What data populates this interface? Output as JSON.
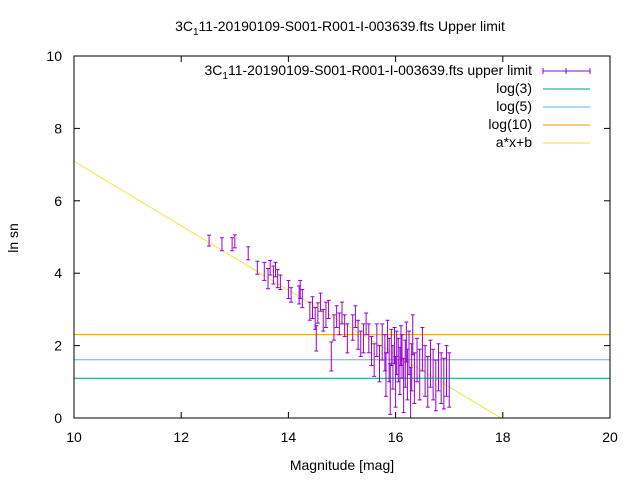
{
  "chart_data": {
    "type": "scatter",
    "title": {
      "prefix": "3C",
      "subscript": "1",
      "suffix": "11-20190109-S001-R001-I-003639.fts Upper limit"
    },
    "xlabel": "Magnitude [mag]",
    "ylabel": "ln sn",
    "xlim": [
      10,
      20
    ],
    "ylim": [
      0,
      10
    ],
    "xticks": [
      "10",
      "12",
      "14",
      "16",
      "18",
      "20"
    ],
    "yticks": [
      "0",
      "2",
      "4",
      "6",
      "8",
      "10"
    ],
    "grid": false,
    "legend_position": "top-right",
    "series": [
      {
        "name": {
          "prefix": "3C",
          "subscript": "1",
          "suffix": "11-20190109-S001-R001-I-003639.fts upper limit"
        },
        "kind": "errorbars",
        "color": "#9400d3",
        "points": [
          [
            12.52,
            4.9,
            0.15
          ],
          [
            12.76,
            4.8,
            0.18
          ],
          [
            12.95,
            4.8,
            0.18
          ],
          [
            13.0,
            4.88,
            0.18
          ],
          [
            13.25,
            4.55,
            0.18
          ],
          [
            13.42,
            4.15,
            0.18
          ],
          [
            13.55,
            4.05,
            0.25
          ],
          [
            13.62,
            3.85,
            0.28
          ],
          [
            13.66,
            4.15,
            0.2
          ],
          [
            13.72,
            3.95,
            0.25
          ],
          [
            13.76,
            4.1,
            0.2
          ],
          [
            13.8,
            3.85,
            0.25
          ],
          [
            13.85,
            3.75,
            0.2
          ],
          [
            14.0,
            3.55,
            0.25
          ],
          [
            14.05,
            3.4,
            0.2
          ],
          [
            14.2,
            3.4,
            0.25
          ],
          [
            14.22,
            3.55,
            0.25
          ],
          [
            14.26,
            3.3,
            0.25
          ],
          [
            14.4,
            2.95,
            0.25
          ],
          [
            14.45,
            3.05,
            0.3
          ],
          [
            14.5,
            2.75,
            0.3
          ],
          [
            14.52,
            2.2,
            0.35
          ],
          [
            14.55,
            2.9,
            0.28
          ],
          [
            14.6,
            3.2,
            0.25
          ],
          [
            14.65,
            2.7,
            0.3
          ],
          [
            14.7,
            2.85,
            0.35
          ],
          [
            14.75,
            3.0,
            0.25
          ],
          [
            14.8,
            1.7,
            0.4
          ],
          [
            14.85,
            2.5,
            0.35
          ],
          [
            14.9,
            2.8,
            0.3
          ],
          [
            14.95,
            2.6,
            0.3
          ],
          [
            15.0,
            2.9,
            0.3
          ],
          [
            15.05,
            2.55,
            0.3
          ],
          [
            15.1,
            2.2,
            0.4
          ],
          [
            15.2,
            2.5,
            0.35
          ],
          [
            15.25,
            2.8,
            0.3
          ],
          [
            15.3,
            2.3,
            0.4
          ],
          [
            15.35,
            2.05,
            0.35
          ],
          [
            15.4,
            2.2,
            0.4
          ],
          [
            15.45,
            2.6,
            0.3
          ],
          [
            15.5,
            2.2,
            0.4
          ],
          [
            15.55,
            1.85,
            0.4
          ],
          [
            15.6,
            1.6,
            0.45
          ],
          [
            15.65,
            2.15,
            0.45
          ],
          [
            15.7,
            1.5,
            0.5
          ],
          [
            15.75,
            2.1,
            0.5
          ],
          [
            15.8,
            1.8,
            0.5
          ],
          [
            15.82,
            1.2,
            0.6
          ],
          [
            15.85,
            2.25,
            0.45
          ],
          [
            15.88,
            1.6,
            0.6
          ],
          [
            15.9,
            0.8,
            0.7
          ],
          [
            15.92,
            1.95,
            0.5
          ],
          [
            15.95,
            1.4,
            0.6
          ],
          [
            15.98,
            2.0,
            0.5
          ],
          [
            16.0,
            1.0,
            0.7
          ],
          [
            16.02,
            1.8,
            0.6
          ],
          [
            16.05,
            1.6,
            0.6
          ],
          [
            16.08,
            1.3,
            0.65
          ],
          [
            16.1,
            2.0,
            0.55
          ],
          [
            16.12,
            1.7,
            0.6
          ],
          [
            16.15,
            0.9,
            0.75
          ],
          [
            16.18,
            1.5,
            0.65
          ],
          [
            16.2,
            2.1,
            0.55
          ],
          [
            16.22,
            1.2,
            0.7
          ],
          [
            16.25,
            1.8,
            0.6
          ],
          [
            16.28,
            0.7,
            0.7
          ],
          [
            16.3,
            1.4,
            0.65
          ],
          [
            16.32,
            2.3,
            0.55
          ],
          [
            16.35,
            1.1,
            0.7
          ],
          [
            16.4,
            1.6,
            0.6
          ],
          [
            16.45,
            1.2,
            0.7
          ],
          [
            16.5,
            1.9,
            0.6
          ],
          [
            16.55,
            1.3,
            0.7
          ],
          [
            16.6,
            1.0,
            0.7
          ],
          [
            16.65,
            1.5,
            0.65
          ],
          [
            16.7,
            1.2,
            0.7
          ],
          [
            16.75,
            0.9,
            0.7
          ],
          [
            16.8,
            1.4,
            0.65
          ],
          [
            16.85,
            1.1,
            0.7
          ],
          [
            16.9,
            0.95,
            0.7
          ],
          [
            16.95,
            1.3,
            0.7
          ],
          [
            17.0,
            1.05,
            0.75
          ]
        ]
      },
      {
        "name": "log(3)",
        "kind": "hline",
        "y": 1.0986,
        "color": "#009e73"
      },
      {
        "name": "log(5)",
        "kind": "hline",
        "y": 1.6094,
        "color": "#56b4e9"
      },
      {
        "name": "log(10)",
        "kind": "hline",
        "y": 2.3026,
        "color": "#e69f00"
      },
      {
        "name": "a*x+b",
        "kind": "line",
        "slope": -0.89,
        "intercept": 15.99,
        "color": "#f0e442"
      }
    ]
  }
}
